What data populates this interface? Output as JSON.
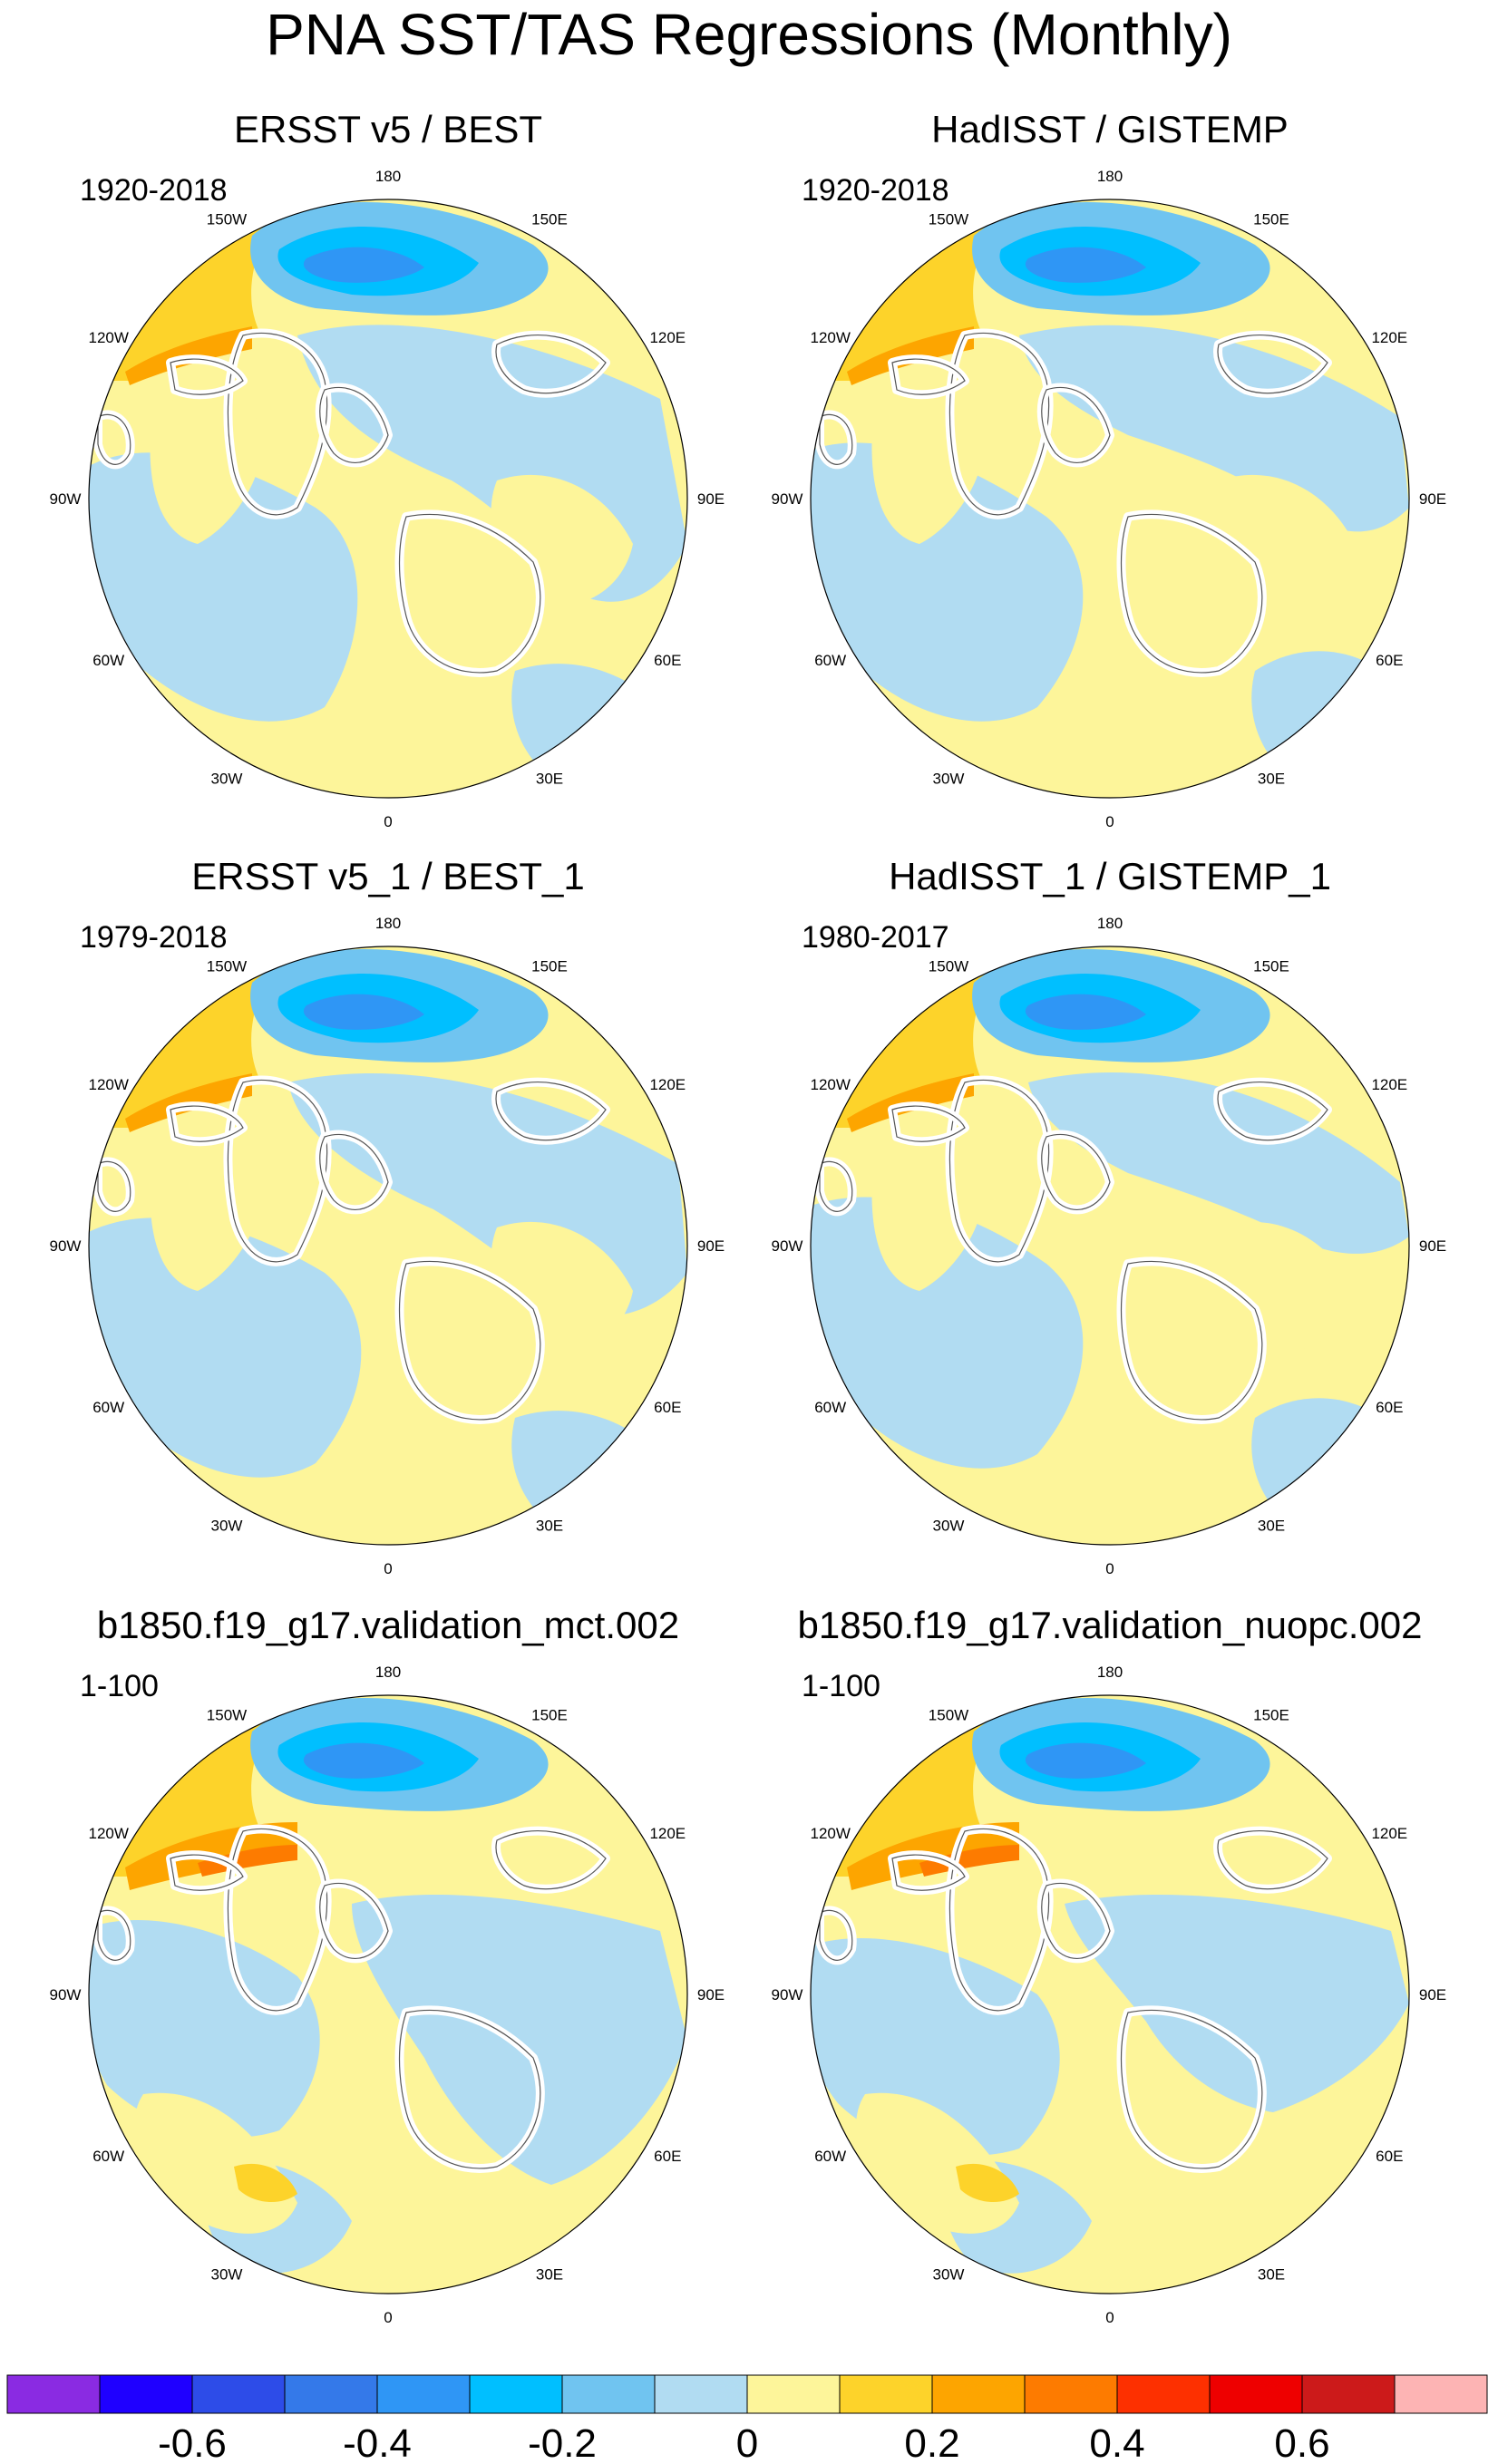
{
  "title": "PNA SST/TAS Regressions (Monthly)",
  "panels": [
    {
      "title": "ERSST v5 / BEST",
      "period": "1920-2018",
      "pattern": "obs1"
    },
    {
      "title": "HadISST / GISTEMP",
      "period": "1920-2018",
      "pattern": "obs2"
    },
    {
      "title": "ERSST v5_1 / BEST_1",
      "period": "1979-2018",
      "pattern": "obs3"
    },
    {
      "title": "HadISST_1 / GISTEMP_1",
      "period": "1980-2017",
      "pattern": "obs4"
    },
    {
      "title": "b1850.f19_g17.validation_mct.002",
      "period": "1-100",
      "pattern": "mod1"
    },
    {
      "title": "b1850.f19_g17.validation_nuopc.002",
      "period": "1-100",
      "pattern": "mod2"
    }
  ],
  "lon_labels": {
    "top": "180",
    "bottom": "0",
    "left": "90W",
    "right": "90E",
    "upper_left_outer": "150W",
    "upper_left_inner": "120W",
    "upper_right_outer": "150E",
    "upper_right_inner": "120E",
    "lower_left_inner": "60W",
    "lower_left_outer": "30W",
    "lower_right_inner": "60E",
    "lower_right_outer": "30E"
  },
  "colorbar": {
    "colors": [
      "#8a2be2",
      "#1f00ff",
      "#2d4ce8",
      "#3479e9",
      "#2f96f5",
      "#00bfff",
      "#70c4f0",
      "#b1dcf2",
      "#fdf59a",
      "#fdd32a",
      "#fda500",
      "#fd7b00",
      "#fd3000",
      "#ee0000",
      "#cc1a1a",
      "#fdb4b4"
    ],
    "tick_labels": [
      "-0.6",
      "-0.4",
      "-0.2",
      "0",
      "0.2",
      "0.4",
      "0.6"
    ],
    "tick_values": [
      -0.6,
      -0.4,
      -0.2,
      0,
      0.2,
      0.4,
      0.6
    ],
    "min": -0.8,
    "max": 0.8
  },
  "fill_colors": {
    "neg3": "#2f96f5",
    "neg2": "#00bfff",
    "neg1": "#70c4f0",
    "neg0": "#b1dcf2",
    "pos0": "#fdf59a",
    "pos1": "#fdd32a",
    "pos2": "#fda500",
    "pos3": "#fd7b00",
    "pos4": "#fd3000",
    "land": "#ffffff",
    "coast": "#555555"
  }
}
